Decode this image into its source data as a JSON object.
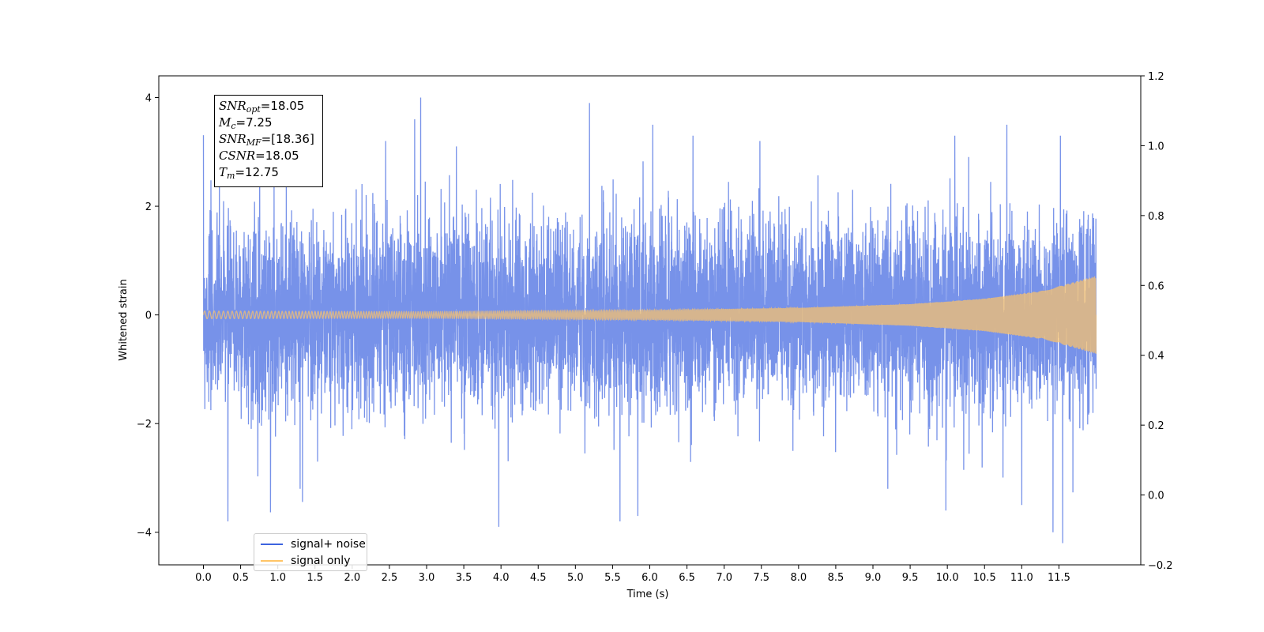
{
  "chart_data": {
    "type": "line",
    "title": "",
    "xlabel": "Time (s)",
    "ylabel": "Whitened strain",
    "xlim": [
      -0.6,
      12.6
    ],
    "ylim": [
      -4.6,
      4.4
    ],
    "y2lim": [
      -0.2,
      1.2
    ],
    "x_ticks": [
      "0.0",
      "0.5",
      "1.0",
      "1.5",
      "2.0",
      "2.5",
      "3.0",
      "3.5",
      "4.0",
      "4.5",
      "5.0",
      "5.5",
      "6.0",
      "6.5",
      "7.0",
      "7.5",
      "8.0",
      "8.5",
      "9.0",
      "9.5",
      "10.0",
      "10.5",
      "11.0",
      "11.5"
    ],
    "y_ticks": [
      "4",
      "2",
      "0",
      "−2",
      "−4"
    ],
    "y2_ticks": [
      "1.2",
      "1.0",
      "0.8",
      "0.6",
      "0.4",
      "0.2",
      "0.0",
      "−0.2"
    ],
    "grid": false,
    "legend_position": "lower-left",
    "series": [
      {
        "name": "signal+ noise",
        "color": "#3d64df",
        "duration": 12.0,
        "approx_sigma": 0.85,
        "peak_positive": [
          [
            0.95,
            2.4
          ],
          [
            2.45,
            3.2
          ],
          [
            2.84,
            3.6
          ],
          [
            2.92,
            4.0
          ],
          [
            3.4,
            3.1
          ],
          [
            5.19,
            3.9
          ],
          [
            6.04,
            3.5
          ],
          [
            6.58,
            3.3
          ],
          [
            7.48,
            3.2
          ],
          [
            9.2,
            3.4
          ],
          [
            10.1,
            3.3
          ],
          [
            10.8,
            3.5
          ],
          [
            11.52,
            3.3
          ]
        ],
        "peak_negative": [
          [
            0.33,
            -3.8
          ],
          [
            1.3,
            -3.2
          ],
          [
            3.97,
            -3.9
          ],
          [
            5.6,
            -3.8
          ],
          [
            5.84,
            -3.7
          ],
          [
            9.2,
            -3.2
          ],
          [
            9.98,
            -3.6
          ],
          [
            11.0,
            -3.5
          ],
          [
            11.42,
            -4.0
          ],
          [
            11.55,
            -4.2
          ]
        ]
      },
      {
        "name": "signal only",
        "color": "#ffc567",
        "envelope": [
          [
            0.0,
            0.07
          ],
          [
            3.0,
            0.06
          ],
          [
            6.0,
            0.09
          ],
          [
            8.0,
            0.13
          ],
          [
            9.5,
            0.2
          ],
          [
            10.5,
            0.3
          ],
          [
            11.3,
            0.45
          ],
          [
            12.0,
            0.72
          ]
        ]
      }
    ],
    "annotation": {
      "snr_opt_prefix": "SNR",
      "snr_opt_sub": "opt",
      "snr_opt_value": "=18.05",
      "mc_prefix": "M",
      "mc_sub": "c",
      "mc_value": "=7.25",
      "snr_mf_prefix": "SNR",
      "snr_mf_sub": "MF",
      "snr_mf_value": "=[18.36]",
      "csnr_prefix": "CSNR",
      "csnr_value": "=18.05",
      "tm_prefix": "T",
      "tm_sub": "m",
      "tm_value": "=12.75"
    }
  }
}
